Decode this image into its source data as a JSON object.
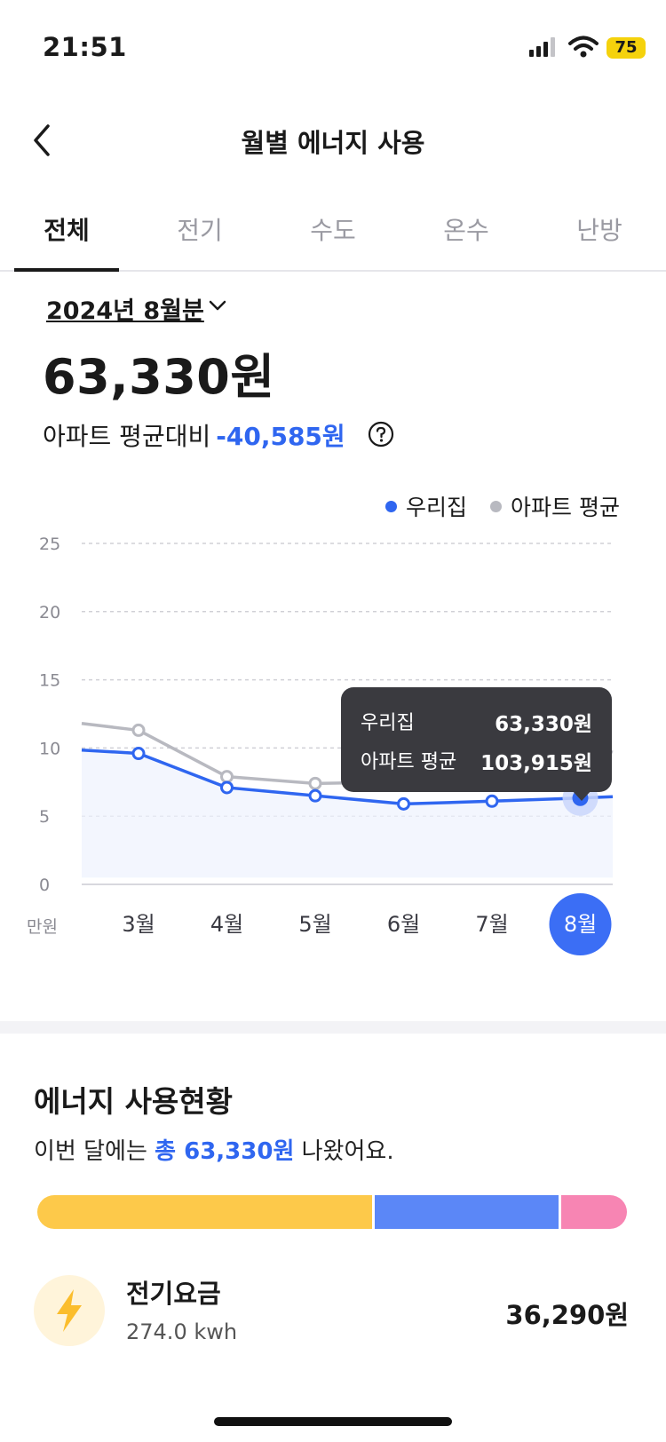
{
  "status_bar": {
    "time": "21:51",
    "battery": "75"
  },
  "nav": {
    "title": "월별 에너지 사용"
  },
  "tabs": [
    {
      "label": "전체",
      "active": true
    },
    {
      "label": "전기",
      "active": false
    },
    {
      "label": "수도",
      "active": false
    },
    {
      "label": "온수",
      "active": false
    },
    {
      "label": "난방",
      "active": false
    }
  ],
  "summary": {
    "period": "2024년 8월분",
    "total": "63,330원",
    "compare_label": "아파트 평균대비",
    "compare_value": "-40,585원"
  },
  "legend": {
    "ours": "우리집",
    "avg": "아파트 평균"
  },
  "chart_data": {
    "type": "line",
    "categories": [
      "3월",
      "4월",
      "5월",
      "6월",
      "7월",
      "8월"
    ],
    "selected_category": "8월",
    "y_unit": "만원",
    "ylim": [
      0,
      25
    ],
    "y_ticks": [
      0,
      5,
      10,
      15,
      20,
      25
    ],
    "grid": true,
    "legend_position": "top-right",
    "series": [
      {
        "name": "우리집",
        "color": "#2f66f0",
        "values": [
          9.6,
          7.1,
          6.5,
          5.9,
          6.1,
          6.33
        ]
      },
      {
        "name": "아파트 평균",
        "color": "#b8b9c0",
        "values": [
          11.3,
          7.9,
          7.4,
          7.5,
          9.0,
          10.39
        ]
      }
    ]
  },
  "tooltip": {
    "ours_label": "우리집",
    "ours_value": "63,330원",
    "avg_label": "아파트 평균",
    "avg_value": "103,915원"
  },
  "usage": {
    "title": "에너지 사용현황",
    "sub_prefix": "이번 달에는",
    "sub_highlight": "총 63,330원",
    "sub_suffix": "나왔어요.",
    "segments": [
      {
        "name": "전기",
        "color": "#fdc94a",
        "fraction": 0.573
      },
      {
        "name": "수도",
        "color": "#5b87f7",
        "fraction": 0.315
      },
      {
        "name": "난방",
        "color": "#f785b3",
        "fraction": 0.112
      }
    ],
    "items": [
      {
        "name": "전기요금",
        "usage": "274.0 kwh",
        "amount": "36,290원",
        "icon": "lightning-icon"
      }
    ]
  },
  "colors": {
    "accent": "#2f66f0",
    "average": "#b8b9c0",
    "tooltip_bg": "#3a3a3f"
  }
}
